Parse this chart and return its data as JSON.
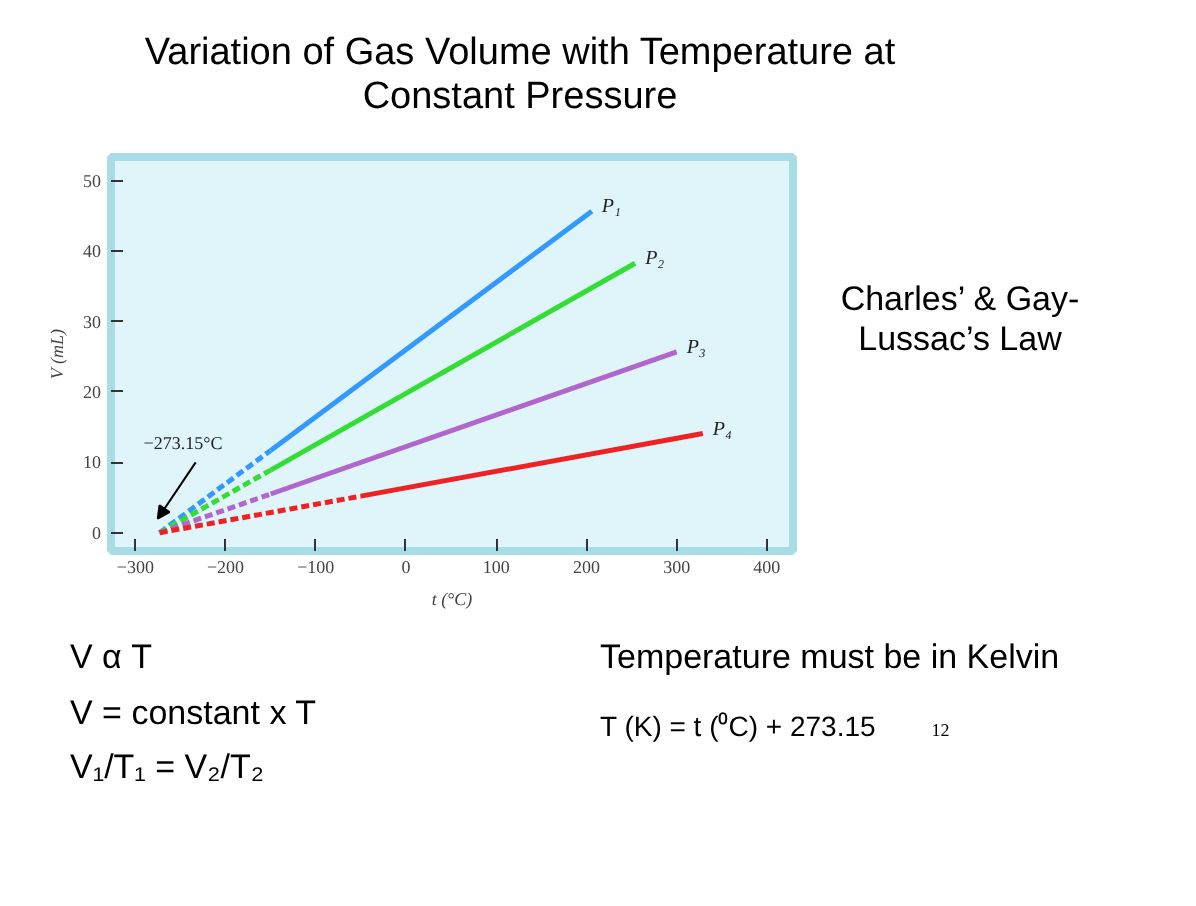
{
  "chart_data": {
    "type": "line",
    "title": "Variation of Gas Volume with Temperature at Constant Pressure",
    "xlabel": "t (°C)",
    "ylabel": "V (mL)",
    "xlim": [
      -327,
      429
    ],
    "ylim": [
      -2.6,
      53.4
    ],
    "xticks": [
      -300,
      -200,
      -100,
      0,
      100,
      200,
      300,
      400
    ],
    "yticks": [
      0,
      10,
      20,
      30,
      40,
      50
    ],
    "grid": false,
    "series": [
      {
        "name": "P₁",
        "color": "#3399ff",
        "x": [
          -150,
          206
        ],
        "values": [
          11.7,
          45.7
        ],
        "line_style": "solid"
      },
      {
        "name": "P₂",
        "color": "#33dd33",
        "x": [
          -150,
          254
        ],
        "values": [
          8.9,
          38.3
        ],
        "line_style": "solid"
      },
      {
        "name": "P₃",
        "color": "#b066cc",
        "x": [
          -150,
          300
        ],
        "values": [
          5.5,
          25.7
        ],
        "line_style": "solid"
      },
      {
        "name": "P₄",
        "color": "#ee2222",
        "x": [
          -50,
          329
        ],
        "values": [
          5.2,
          14.1
        ],
        "line_style": "solid"
      },
      {
        "color": "#3399ff",
        "x": [
          -273.15,
          -150
        ],
        "values": [
          0,
          11.7
        ],
        "line_style": "dashed"
      },
      {
        "color": "#33dd33",
        "x": [
          -273.15,
          -150
        ],
        "values": [
          0,
          8.9
        ],
        "line_style": "dashed"
      },
      {
        "color": "#b066cc",
        "x": [
          -273.15,
          -150
        ],
        "values": [
          0,
          5.5
        ],
        "line_style": "dashed"
      },
      {
        "color": "#ee2222",
        "x": [
          -273.15,
          -50
        ],
        "values": [
          0,
          5.2
        ],
        "line_style": "dashed"
      }
    ],
    "annotations": [
      {
        "text": "−273.15°C",
        "x": -273.15,
        "y": 0
      },
      "Charles’ & Gay-Lussac’s Law",
      "V α T",
      "V = constant x T",
      "V₁/T₁ = V₂/T₂",
      "Temperature must be in Kelvin",
      "T (K) = t (⁰C) + 273.15",
      "12"
    ]
  }
}
